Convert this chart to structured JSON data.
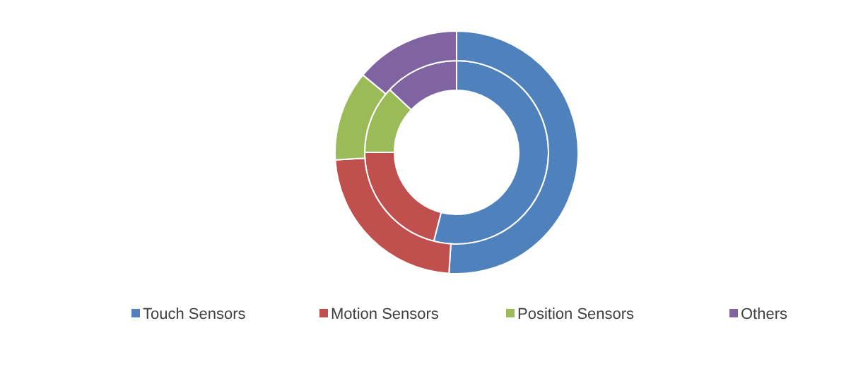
{
  "chart_data": {
    "type": "donut",
    "categories": [
      "Touch Sensors",
      "Motion Sensors",
      "Position Sensors",
      "Others"
    ],
    "colors": [
      "#4f81bd",
      "#c0504d",
      "#9bbb59",
      "#8064a2"
    ],
    "series": [
      {
        "values": [
          54,
          21,
          12,
          13
        ]
      },
      {
        "values": [
          51,
          23,
          12,
          14
        ]
      }
    ],
    "legend": "bottom"
  }
}
